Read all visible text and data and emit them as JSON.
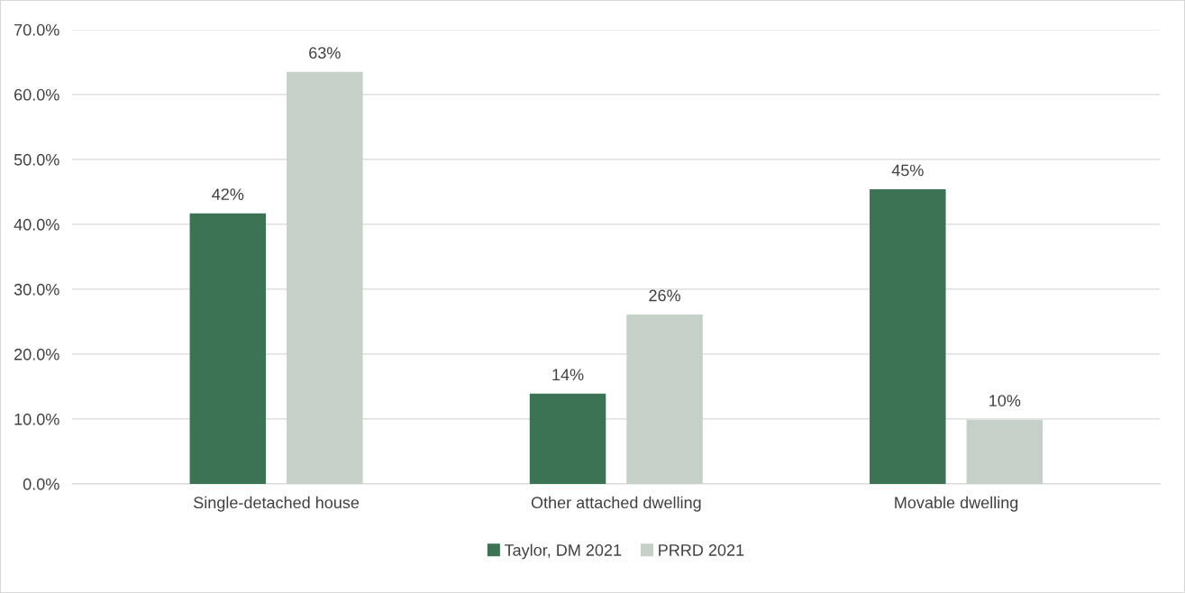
{
  "chart_data": {
    "type": "bar",
    "categories": [
      "Single-detached house",
      "Other attached dwelling",
      "Movable dwelling"
    ],
    "series": [
      {
        "name": "Taylor, DM 2021",
        "color": "#3b7354",
        "values": [
          41.7,
          13.9,
          45.4
        ],
        "value_labels": [
          "42%",
          "14%",
          "45%"
        ]
      },
      {
        "name": "PRRD 2021",
        "color": "#c5d0c8",
        "values": [
          63.5,
          26.1,
          9.9
        ],
        "value_labels": [
          "63%",
          "26%",
          "10%"
        ]
      }
    ],
    "ylim": [
      0,
      70
    ],
    "yticks": [
      {
        "value": 0,
        "label": "0.0%"
      },
      {
        "value": 10,
        "label": "10.0%"
      },
      {
        "value": 20,
        "label": "20.0%"
      },
      {
        "value": 30,
        "label": "30.0%"
      },
      {
        "value": 40,
        "label": "40.0%"
      },
      {
        "value": 50,
        "label": "50.0%"
      },
      {
        "value": 60,
        "label": "60.0%"
      },
      {
        "value": 70,
        "label": "70.0%"
      }
    ],
    "grid": "y",
    "legend": "bottom"
  }
}
